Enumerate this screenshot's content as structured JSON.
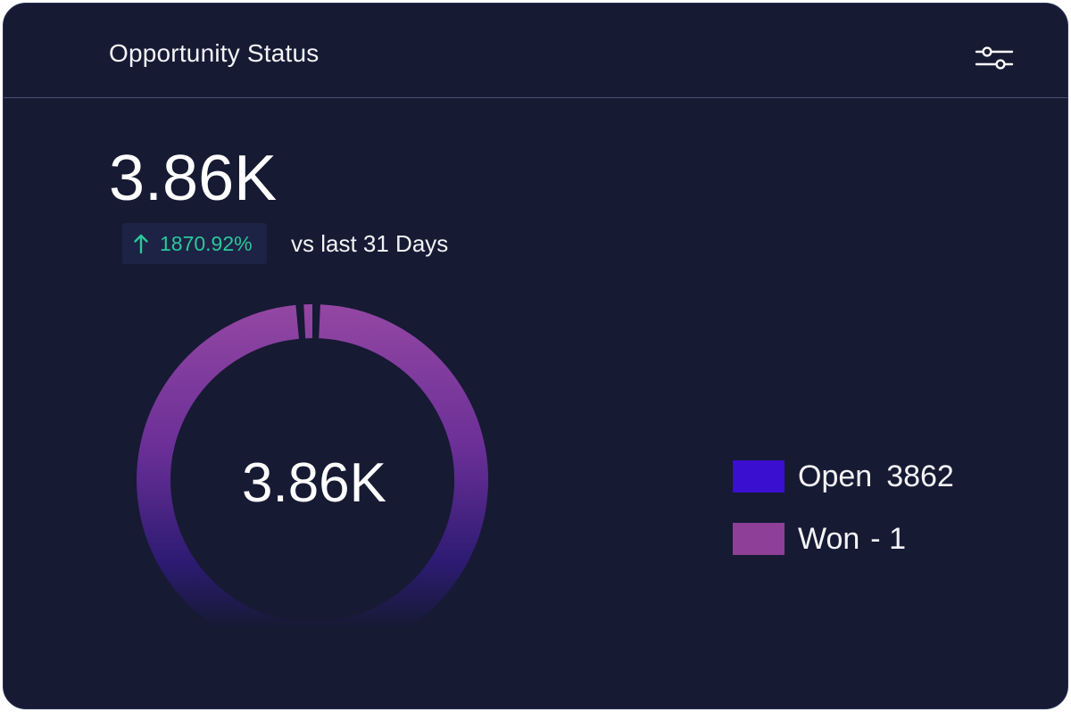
{
  "header": {
    "title": "Opportunity Status",
    "filter_icon": "sliders-icon"
  },
  "summary": {
    "total": "3.86K",
    "change_percent": "1870.92%",
    "change_direction": "up",
    "change_period": "vs last 31 Days",
    "up_color": "#2bc79b"
  },
  "chart_data": {
    "type": "pie",
    "donut": true,
    "center_label": "3.86K",
    "legend_position": "right",
    "series": [
      {
        "name": "Open",
        "value": 3862,
        "display": "3862",
        "color": "#3a0fd0"
      },
      {
        "name": "Won",
        "value": 1,
        "display": "- 1",
        "color": "#8e3f98"
      }
    ]
  }
}
